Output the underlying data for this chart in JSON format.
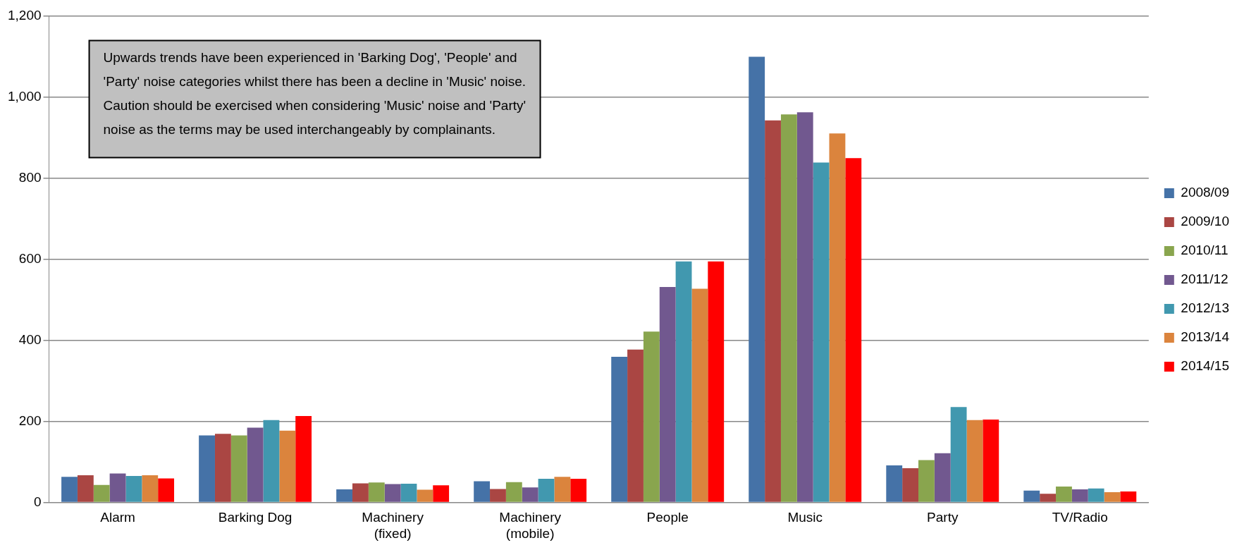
{
  "chart_data": {
    "type": "bar",
    "categories": [
      "Alarm",
      "Barking Dog",
      "Machinery\n(fixed)",
      "Machinery\n(mobile)",
      "People",
      "Music",
      "Party",
      "TV/Radio"
    ],
    "series": [
      {
        "name": "2008/09",
        "color": "#4572a7",
        "values": [
          63,
          165,
          32,
          52,
          359,
          1099,
          91,
          29
        ]
      },
      {
        "name": "2009/10",
        "color": "#aa4643",
        "values": [
          67,
          169,
          47,
          33,
          377,
          942,
          84,
          21
        ]
      },
      {
        "name": "2010/11",
        "color": "#89a54e",
        "values": [
          43,
          165,
          49,
          50,
          421,
          957,
          104,
          39
        ]
      },
      {
        "name": "2011/12",
        "color": "#71588f",
        "values": [
          71,
          184,
          45,
          37,
          531,
          962,
          121,
          32
        ]
      },
      {
        "name": "2012/13",
        "color": "#4198af",
        "values": [
          65,
          203,
          46,
          58,
          594,
          838,
          235,
          34
        ]
      },
      {
        "name": "2013/14",
        "color": "#db843d",
        "values": [
          67,
          177,
          31,
          63,
          527,
          910,
          203,
          25
        ]
      },
      {
        "name": "2014/15",
        "color": "#ff0000",
        "values": [
          59,
          213,
          42,
          58,
          594,
          849,
          204,
          27
        ]
      }
    ],
    "ylim": [
      0,
      1200
    ],
    "yticks": [
      0,
      {
        "value": 200,
        "label": "200"
      },
      {
        "value": 400,
        "label": "400"
      },
      {
        "value": 600,
        "label": "600"
      },
      {
        "value": 800,
        "label": "800"
      },
      {
        "value": 1000,
        "label": "1,000"
      },
      {
        "value": 1200,
        "label": "1,200"
      }
    ],
    "grid": "y",
    "legend": "right",
    "annotations": [
      "Upwards trends have been experienced in 'Barking Dog', 'People' and 'Party' noise categories whilst there has been a decline in 'Music' noise.  Caution should be exercised when considering 'Music' noise and 'Party' noise as the terms may be used interchangeably by complainants."
    ]
  }
}
